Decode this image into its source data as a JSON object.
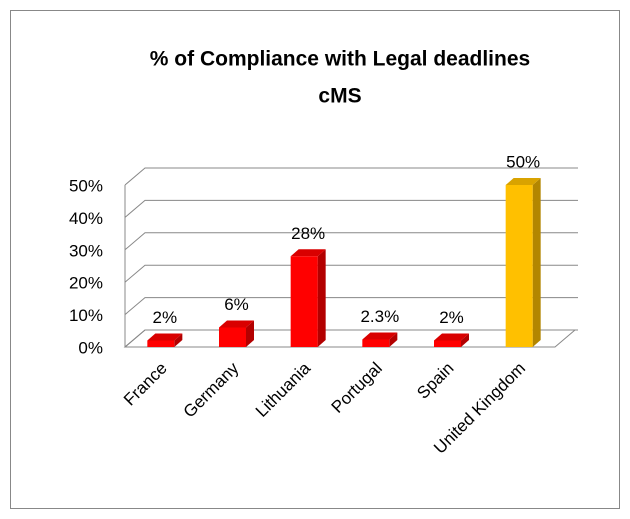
{
  "chart_data": {
    "type": "bar3d",
    "title": [
      "% of Compliance with Legal deadlines",
      "cMS"
    ],
    "categories": [
      "France",
      "Germany",
      "Lithuania",
      "Portugal",
      "Spain",
      "United Kingdom"
    ],
    "values": [
      2,
      6,
      28,
      2.3,
      2,
      50
    ],
    "value_labels": [
      "2%",
      "6%",
      "28%",
      "2.3%",
      "2%",
      "50%"
    ],
    "colors": [
      "#ff0000",
      "#ff0000",
      "#ff0000",
      "#ff0000",
      "#ff0000",
      "#ffc000"
    ],
    "ylim": [
      0,
      50
    ],
    "yticks": [
      {
        "value": 0,
        "label": "0%"
      },
      {
        "value": 10,
        "label": "10%"
      },
      {
        "value": 20,
        "label": "20%"
      },
      {
        "value": 30,
        "label": "30%"
      },
      {
        "value": 40,
        "label": "40%"
      },
      {
        "value": 50,
        "label": "50%"
      }
    ],
    "grid": true
  }
}
